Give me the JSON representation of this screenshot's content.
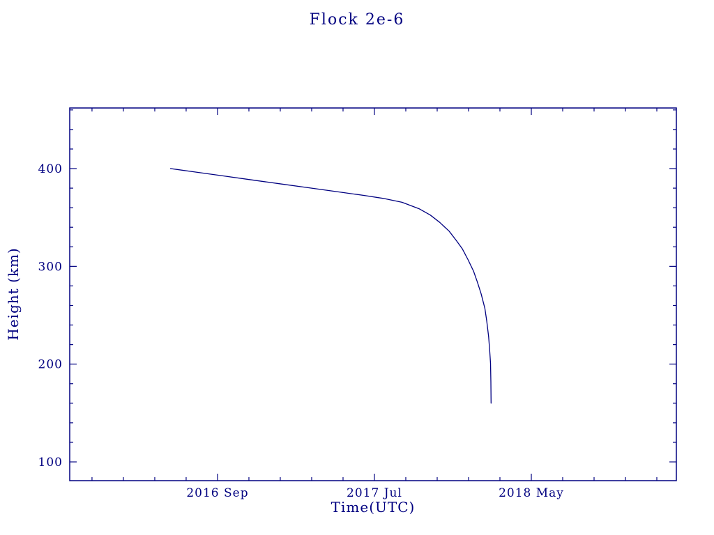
{
  "title": "Flock 2e-6",
  "chart_data": {
    "type": "line",
    "title": "Flock 2e-6",
    "xlabel": "Time(UTC)",
    "ylabel": "Height (km)",
    "color": "#000080",
    "background": "#ffffff",
    "grid": false,
    "legend": "none",
    "xlim": [
      2015.885,
      2019.107
    ],
    "ylim": [
      80.8,
      462.0
    ],
    "x_major_ticks": [
      {
        "value": 2016.67,
        "label": "2016 Sep"
      },
      {
        "value": 2017.5033,
        "label": "2017 Jul"
      },
      {
        "value": 2018.3367,
        "label": "2018 May"
      }
    ],
    "x_minor_ticks": [
      2016.0033,
      2016.17,
      2016.3367,
      2016.5033,
      2016.8367,
      2017.0033,
      2017.17,
      2017.3367,
      2017.67,
      2017.8367,
      2018.0033,
      2018.17,
      2018.5033,
      2018.67,
      2018.8367,
      2019.0033
    ],
    "y_major_ticks": [
      {
        "value": 100,
        "label": "100"
      },
      {
        "value": 200,
        "label": "200"
      },
      {
        "value": 300,
        "label": "300"
      },
      {
        "value": 400,
        "label": "400"
      }
    ],
    "y_minor_ticks": [
      120,
      140,
      160,
      180,
      220,
      240,
      260,
      280,
      320,
      340,
      360,
      380,
      420,
      440,
      460
    ],
    "series": [
      {
        "name": "height",
        "x": [
          2016.42,
          2016.55,
          2016.7,
          2016.85,
          2017.0,
          2017.15,
          2017.3,
          2017.45,
          2017.55,
          2017.65,
          2017.74,
          2017.8,
          2017.85,
          2017.9,
          2017.94,
          2017.97,
          2018.0,
          2018.03,
          2018.05,
          2018.07,
          2018.09,
          2018.1,
          2018.11,
          2018.116,
          2018.12,
          2018.122,
          2018.123
        ],
        "y": [
          400,
          396.5,
          392.5,
          388.5,
          384.5,
          380.5,
          376.5,
          372.5,
          369.5,
          365.5,
          359,
          352.5,
          345,
          336,
          326,
          318,
          307,
          295,
          284,
          272,
          257,
          244,
          228,
          213,
          201,
          182,
          160
        ]
      }
    ]
  }
}
